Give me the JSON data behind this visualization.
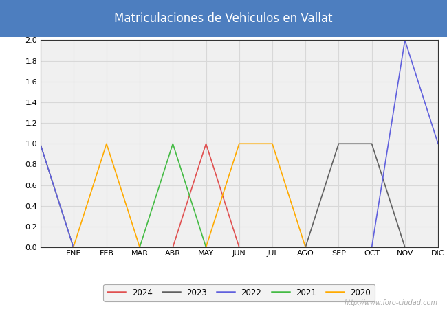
{
  "title": "Matriculaciones de Vehiculos en Vallat",
  "title_bg_color": "#4d7ebf",
  "title_text_color": "#ffffff",
  "plot_bg_color": "#f0f0f0",
  "grid_color": "#d8d8d8",
  "outer_bg_color": "#ffffff",
  "watermark": "http://www.foro-ciudad.com",
  "months": [
    "",
    "ENE",
    "FEB",
    "MAR",
    "ABR",
    "MAY",
    "JUN",
    "JUL",
    "AGO",
    "SEP",
    "OCT",
    "NOV",
    "DIC"
  ],
  "ylim": [
    0.0,
    2.0
  ],
  "yticks": [
    0.0,
    0.2,
    0.4,
    0.6,
    0.8,
    1.0,
    1.2,
    1.4,
    1.6,
    1.8,
    2.0
  ],
  "series": [
    {
      "label": "2024",
      "color": "#e05050",
      "data": [
        null,
        null,
        null,
        null,
        0,
        1,
        0,
        null,
        null,
        null,
        null,
        null,
        null
      ]
    },
    {
      "label": "2023",
      "color": "#606060",
      "data": [
        1,
        0,
        0,
        0,
        0,
        0,
        0,
        0,
        0,
        1,
        1,
        0,
        null
      ]
    },
    {
      "label": "2022",
      "color": "#6060dd",
      "data": [
        1,
        0,
        0,
        0,
        0,
        0,
        0,
        0,
        0,
        0,
        0,
        2,
        1
      ]
    },
    {
      "label": "2021",
      "color": "#44bb44",
      "data": [
        null,
        null,
        null,
        0,
        1,
        0,
        null,
        null,
        null,
        null,
        null,
        null,
        null
      ]
    },
    {
      "label": "2020",
      "color": "#ffaa00",
      "data": [
        0,
        0,
        1,
        0,
        0,
        0,
        1,
        1,
        0,
        0,
        0,
        0,
        null
      ]
    }
  ],
  "legend_order": [
    "2024",
    "2023",
    "2022",
    "2021",
    "2020"
  ],
  "figsize": [
    6.5,
    4.5
  ],
  "dpi": 100
}
